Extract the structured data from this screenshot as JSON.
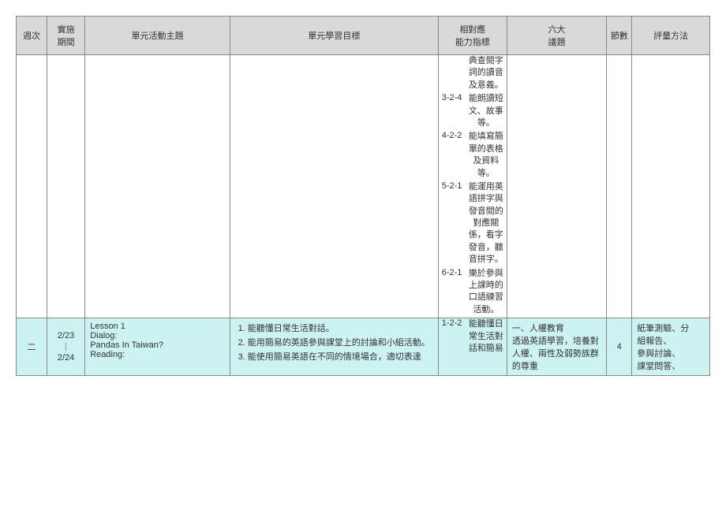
{
  "headers": {
    "week": "週次",
    "period": "實施\n期間",
    "activity": "單元活動主題",
    "objectives": "單元學習目標",
    "indicators": "相對應\n能力指標",
    "topics": "六大\n議題",
    "sessions": "節數",
    "assessment": "評量方法"
  },
  "row1": {
    "indicators": [
      {
        "code": "",
        "text": "典查閱字詞的讀音及意義。"
      },
      {
        "code": "3-2-4",
        "text": "能朗讀短文、故事等。"
      },
      {
        "code": "4-2-2",
        "text": "能填寫簡單的表格及資料等。"
      },
      {
        "code": "5-2-1",
        "text": "能運用英語拼字與發音間的對應關係，看字發音，聽音拼字。"
      },
      {
        "code": "6-2-1",
        "text": "樂於參與上課時的口語練習活動。"
      }
    ]
  },
  "row2": {
    "week": "二",
    "period": "2/23\n｜\n2/24",
    "activity": "Lesson 1\nDialog:\nPandas In Taiwan?\nReading:",
    "objectives": [
      "能聽懂日常生活對話。",
      "能用簡易的英語參與課堂上的討論和小組活動。",
      "能使用簡易英語在不同的情境場合，適切表達"
    ],
    "indicators": [
      {
        "code": "1-2-2",
        "text": "能聽懂日常生活對話和簡易"
      }
    ],
    "topics": "一、人權教育\n透過英語學習，培養對人權、兩性及弱勢族群的尊重",
    "sessions": "4",
    "assessment": [
      "紙筆測驗、分",
      "組報告、",
      "參與討論、",
      "課堂問答、"
    ]
  },
  "colors": {
    "header_bg": "#d9d9d9",
    "highlight_bg": "#ccf2f2",
    "border": "#888888",
    "text": "#333333"
  }
}
